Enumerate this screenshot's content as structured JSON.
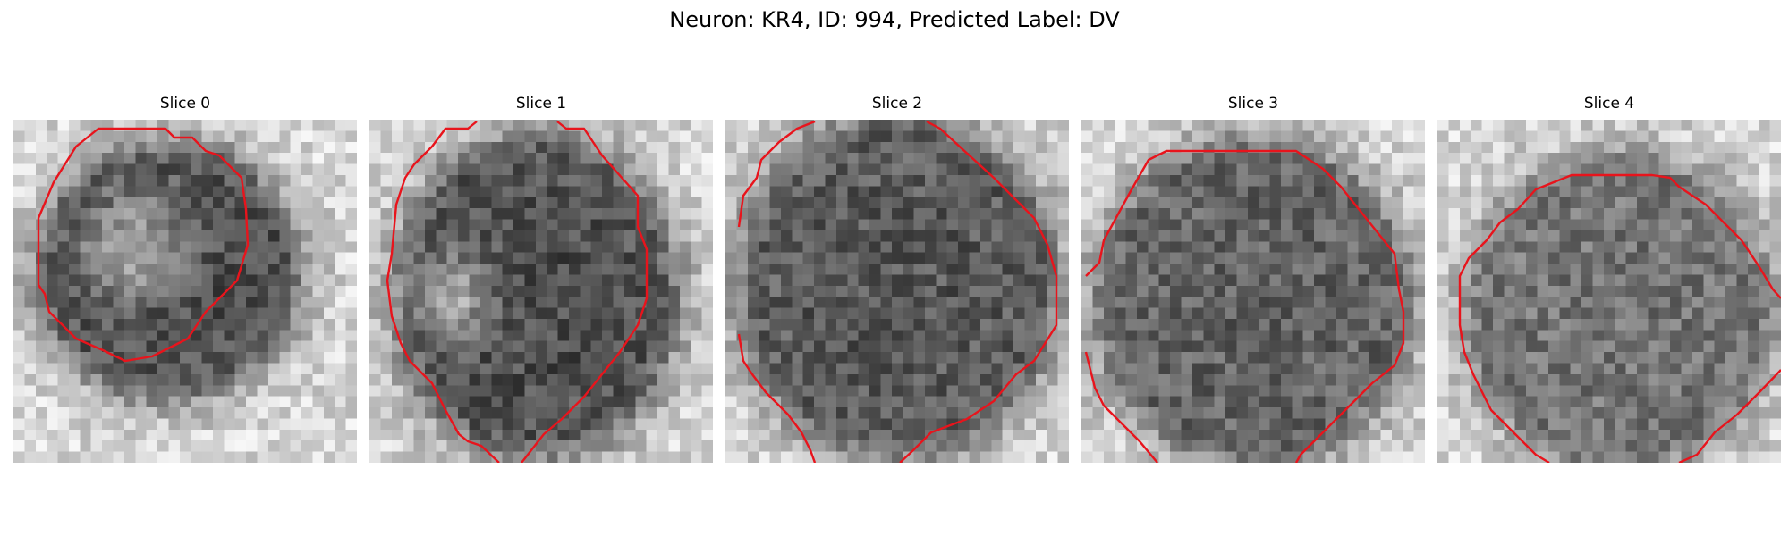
{
  "figure": {
    "title": "Neuron: KR4, ID: 994, Predicted Label: DV"
  },
  "contour_color": "#e8141c",
  "colormap": "grayscale",
  "grid_size": 31,
  "panels": [
    {
      "title": "Slice 0"
    },
    {
      "title": "Slice 1"
    },
    {
      "title": "Slice 2"
    },
    {
      "title": "Slice 3"
    },
    {
      "title": "Slice 4"
    }
  ]
}
